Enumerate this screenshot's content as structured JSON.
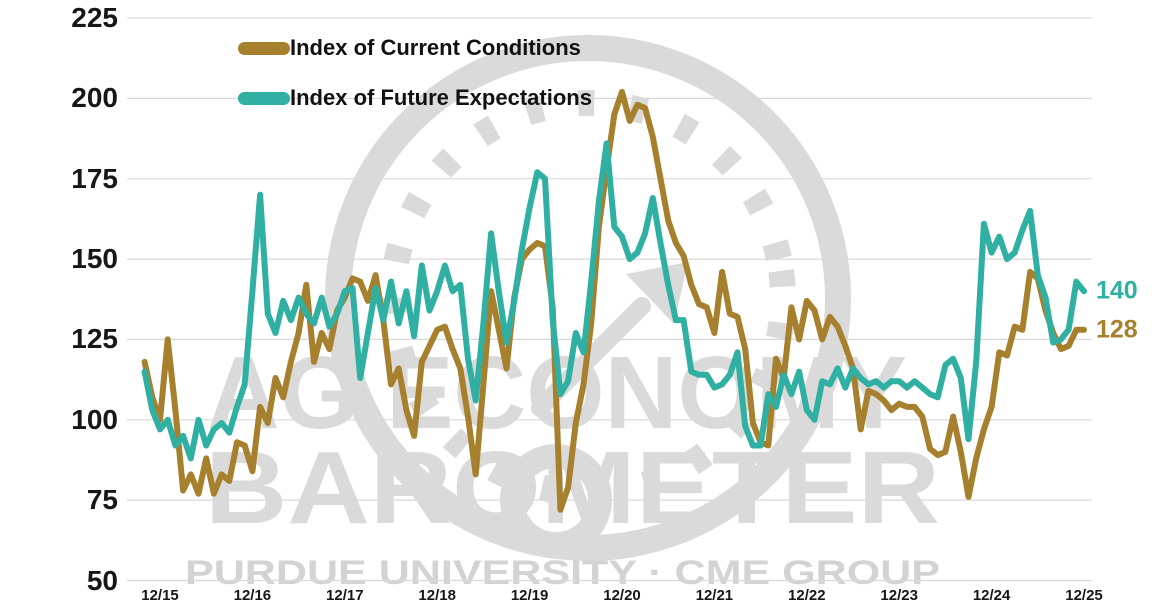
{
  "legend": {
    "current_label": "Index of Current Conditions",
    "future_label": "Index of Future Expectations"
  },
  "end_labels": {
    "future": "140",
    "current": "128"
  },
  "watermark": {
    "line1": "AG ECONOMY",
    "line2": "BAROMETER",
    "footer": "PURDUE UNIVERSITY · CME GROUP"
  },
  "colors": {
    "current": "#A6802D",
    "future": "#2FB0A2",
    "gridline": "#D9D9D9",
    "watermark_gray": "#DADADA",
    "axis_text": "#171717"
  },
  "chart_data": {
    "type": "line",
    "title": "",
    "xlabel": "",
    "ylabel": "",
    "ylim": [
      50,
      225
    ],
    "yticks": [
      225,
      200,
      175,
      150,
      125,
      100,
      75,
      50
    ],
    "xticks": [
      "12/15",
      "12/16",
      "12/17",
      "12/18",
      "12/19",
      "12/20",
      "12/21",
      "12/22",
      "12/23",
      "12/24",
      "12/25"
    ],
    "x_note": "monthly values Oct-2015 through Dec-2025; x tick 12/15 is index 2, ticks every 12 points",
    "first_tick_index": 2,
    "months_per_tick": 12,
    "series": [
      {
        "name": "Index of Current Conditions",
        "color": "#A6802D",
        "values": [
          118,
          107,
          100,
          125,
          103,
          78,
          83,
          77,
          88,
          77,
          83,
          81,
          93,
          92,
          84,
          104,
          99,
          113,
          107,
          118,
          127,
          142,
          118,
          127,
          122,
          134,
          138,
          144,
          143,
          137,
          145,
          131,
          111,
          116,
          103,
          95,
          118,
          123,
          128,
          129,
          122,
          116,
          101,
          83,
          111,
          140,
          128,
          116,
          138,
          150,
          153,
          155,
          154,
          135,
          72,
          79,
          99,
          111,
          130,
          160,
          178,
          195,
          202,
          193,
          198,
          197,
          188,
          175,
          162,
          155,
          151,
          142,
          136,
          135,
          127,
          146,
          133,
          132,
          122,
          99,
          93,
          92,
          119,
          113,
          135,
          125,
          137,
          134,
          125,
          132,
          129,
          123,
          116,
          97,
          109,
          108,
          106,
          103,
          105,
          104,
          104,
          101,
          91,
          89,
          90,
          101,
          90,
          76,
          88,
          97,
          104,
          121,
          120,
          129,
          128,
          146,
          144,
          134,
          127,
          122,
          123,
          128,
          128
        ]
      },
      {
        "name": "Index of Future Expectations",
        "color": "#2FB0A2",
        "values": [
          115,
          103,
          97,
          100,
          92,
          95,
          88,
          100,
          92,
          97,
          99,
          96,
          104,
          111,
          140,
          170,
          133,
          127,
          137,
          131,
          138,
          133,
          130,
          138,
          129,
          133,
          140,
          141,
          113,
          127,
          141,
          131,
          143,
          130,
          140,
          126,
          148,
          134,
          140,
          148,
          140,
          142,
          119,
          106,
          130,
          158,
          140,
          124,
          137,
          153,
          166,
          177,
          175,
          131,
          108,
          112,
          127,
          121,
          143,
          168,
          186,
          160,
          157,
          150,
          152,
          158,
          169,
          155,
          142,
          131,
          131,
          115,
          114,
          114,
          110,
          111,
          114,
          121,
          98,
          92,
          92,
          108,
          104,
          114,
          108,
          115,
          103,
          100,
          112,
          111,
          116,
          110,
          116,
          113,
          111,
          112,
          110,
          112,
          112,
          110,
          112,
          110,
          108,
          107,
          117,
          119,
          113,
          94,
          118,
          161,
          152,
          157,
          150,
          152,
          159,
          165,
          145,
          138,
          124,
          125,
          128,
          143,
          140
        ]
      }
    ],
    "legend_position": "top-left",
    "grid": "horizontal"
  }
}
